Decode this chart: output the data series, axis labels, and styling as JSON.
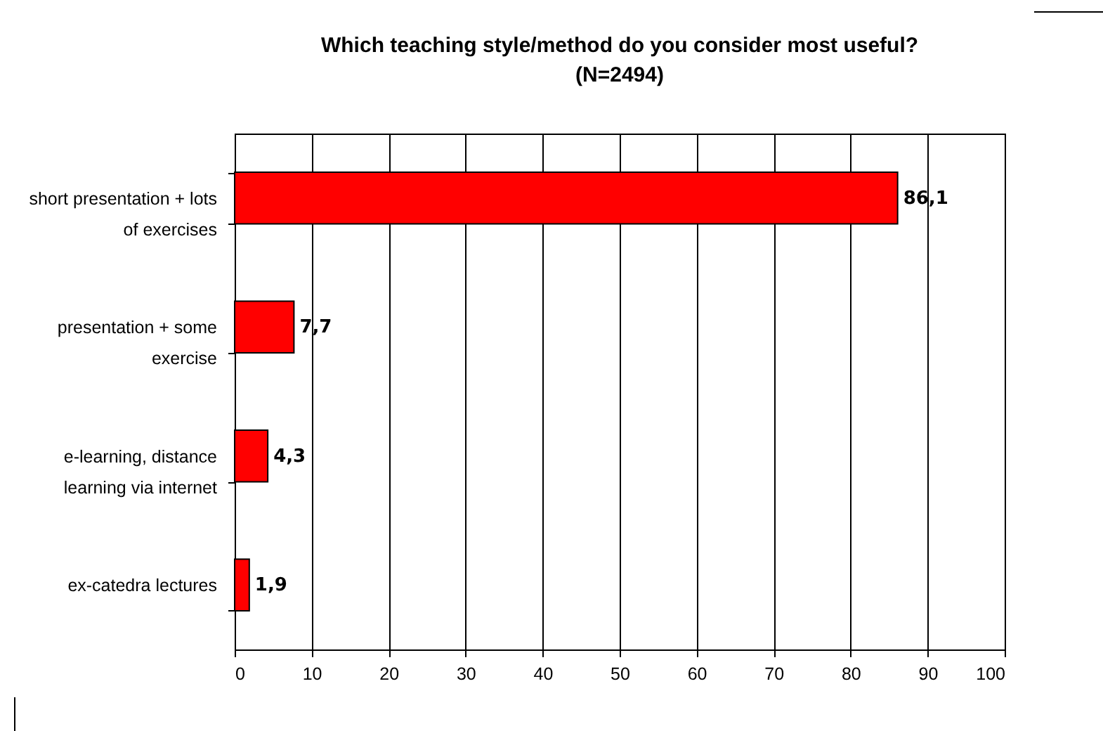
{
  "chart_data": {
    "type": "bar",
    "orientation": "horizontal",
    "title": "Which teaching style/method do you consider most useful?",
    "subtitle": "(N=2494)",
    "categories": [
      "short presentation + lots of exercises",
      "presentation + some exercise",
      "e-learning, distance learning via internet",
      "ex-catedra lectures"
    ],
    "values": [
      86.1,
      7.7,
      4.3,
      1.9
    ],
    "value_labels": [
      "86,1",
      "7,7",
      "4,3",
      "1,9"
    ],
    "color": "#ff0000",
    "xlim": [
      0,
      100
    ],
    "xticks": [
      0,
      10,
      20,
      30,
      40,
      50,
      60,
      70,
      80,
      90,
      100
    ],
    "grid": "x"
  }
}
